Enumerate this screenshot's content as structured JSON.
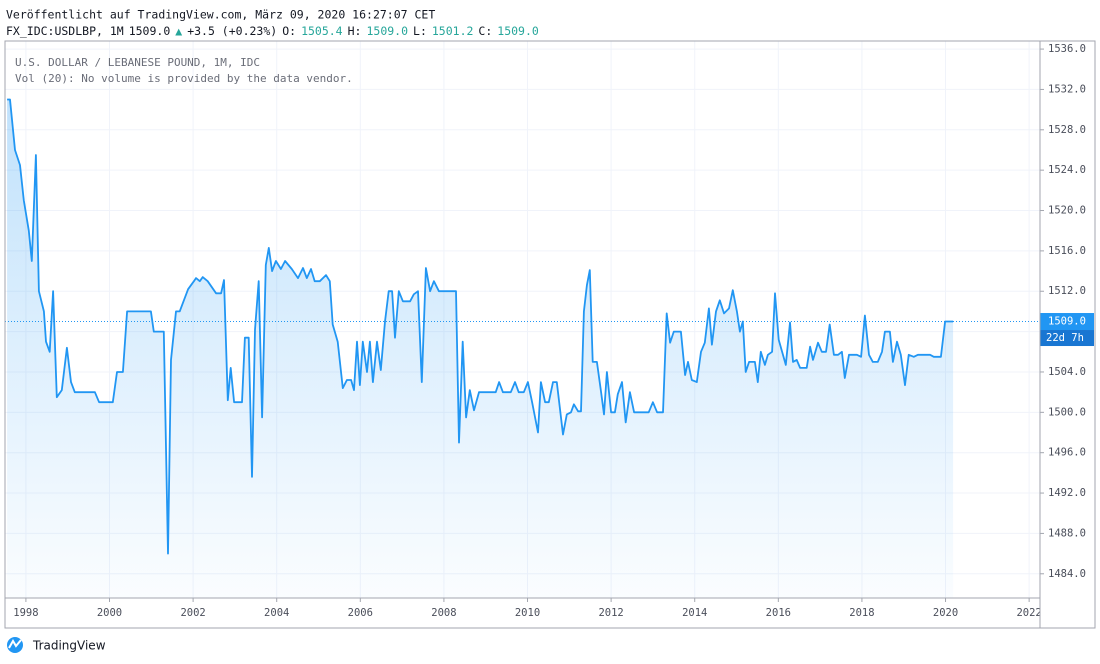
{
  "chart_data": {
    "type": "line",
    "published": "Veröffentlicht auf TradingView.com, März 09, 2020 16:27:07 CET",
    "quote_parts": [
      {
        "text": "FX_IDC:USDLBP, 1M",
        "color": "#131722"
      },
      {
        "text": "1509.0",
        "color": "#131722"
      },
      {
        "text": "▲",
        "color": "#26a69a"
      },
      {
        "text": "+3.5 (+0.23%)",
        "color": "#131722"
      },
      {
        "text": "O:",
        "color": "#131722"
      },
      {
        "text": "1505.4",
        "color": "#26a69a"
      },
      {
        "text": "H:",
        "color": "#131722"
      },
      {
        "text": "1509.0",
        "color": "#26a69a"
      },
      {
        "text": "L:",
        "color": "#131722"
      },
      {
        "text": "1501.2",
        "color": "#26a69a"
      },
      {
        "text": "C:",
        "color": "#131722"
      },
      {
        "text": "1509.0",
        "color": "#26a69a"
      }
    ],
    "legend_lines": [
      "U.S. DOLLAR / LEBANESE POUND, 1M, IDC",
      "Vol (20): No volume is provided by the data vendor."
    ],
    "brand": "TradingView",
    "color": "#2196f3",
    "grid": true,
    "last_price": {
      "value": 1509,
      "label": "1509.0"
    },
    "countdown": "22d 7h",
    "xlim": [
      1997.5,
      2022.26
    ],
    "xticks": [
      1998,
      2000,
      2002,
      2004,
      2006,
      2008,
      2010,
      2012,
      2014,
      2016,
      2018,
      2020,
      2022
    ],
    "ylim": [
      1481.6,
      1536.8
    ],
    "yticks": [
      {
        "value": 1484,
        "label": "1484.0"
      },
      {
        "value": 1488,
        "label": "1488.0"
      },
      {
        "value": 1492,
        "label": "1492.0"
      },
      {
        "value": 1496,
        "label": "1496.0"
      },
      {
        "value": 1500,
        "label": "1500.0"
      },
      {
        "value": 1504,
        "label": "1504.0"
      },
      {
        "value": 1508,
        "label": "1508.0"
      },
      {
        "value": 1512,
        "label": "1512.0"
      },
      {
        "value": 1516,
        "label": "1516.0"
      },
      {
        "value": 1520,
        "label": "1520.0"
      },
      {
        "value": 1524,
        "label": "1524.0"
      },
      {
        "value": 1528,
        "label": "1528.0"
      },
      {
        "value": 1532,
        "label": "1532.0"
      },
      {
        "value": 1536,
        "label": "1536.0"
      }
    ],
    "x": [
      1997.55,
      1997.62,
      1997.74,
      1997.86,
      1997.95,
      1998.07,
      1998.14,
      1998.24,
      1998.31,
      1998.43,
      1998.48,
      1998.57,
      1998.65,
      1998.74,
      1998.86,
      1998.98,
      1999.08,
      1999.17,
      1999.65,
      1999.75,
      2000.08,
      2000.18,
      2000.32,
      2000.42,
      2000.99,
      2001.06,
      2001.3,
      2001.4,
      2001.47,
      2001.59,
      2001.68,
      2001.88,
      2002.02,
      2002.07,
      2002.16,
      2002.23,
      2002.35,
      2002.55,
      2002.67,
      2002.74,
      2002.83,
      2002.9,
      2002.98,
      2003.17,
      2003.24,
      2003.33,
      2003.41,
      2003.48,
      2003.57,
      2003.65,
      2003.74,
      2003.81,
      2003.89,
      2003.98,
      2004.1,
      2004.2,
      2004.36,
      2004.51,
      2004.63,
      2004.72,
      2004.82,
      2004.91,
      2005.03,
      2005.18,
      2005.27,
      2005.34,
      2005.46,
      2005.58,
      2005.68,
      2005.78,
      2005.85,
      2005.92,
      2005.99,
      2006.06,
      2006.16,
      2006.23,
      2006.3,
      2006.4,
      2006.49,
      2006.59,
      2006.68,
      2006.76,
      2006.83,
      2006.92,
      2007.02,
      2007.19,
      2007.28,
      2007.38,
      2007.47,
      2007.57,
      2007.67,
      2007.76,
      2007.88,
      2008.29,
      2008.36,
      2008.45,
      2008.53,
      2008.62,
      2008.72,
      2008.84,
      2009.24,
      2009.32,
      2009.41,
      2009.6,
      2009.7,
      2009.79,
      2009.91,
      2010.01,
      2010.11,
      2010.25,
      2010.32,
      2010.42,
      2010.51,
      2010.61,
      2010.7,
      2010.85,
      2010.94,
      2011.04,
      2011.11,
      2011.21,
      2011.28,
      2011.35,
      2011.42,
      2011.49,
      2011.56,
      2011.66,
      2011.76,
      2011.83,
      2011.9,
      2012.0,
      2012.09,
      2012.16,
      2012.26,
      2012.35,
      2012.45,
      2012.55,
      2012.9,
      2013.0,
      2013.1,
      2013.24,
      2013.33,
      2013.41,
      2013.5,
      2013.67,
      2013.77,
      2013.84,
      2013.93,
      2014.05,
      2014.15,
      2014.24,
      2014.34,
      2014.41,
      2014.51,
      2014.6,
      2014.7,
      2014.82,
      2014.91,
      2015.01,
      2015.08,
      2015.15,
      2015.22,
      2015.3,
      2015.44,
      2015.51,
      2015.58,
      2015.68,
      2015.75,
      2015.85,
      2015.92,
      2016.01,
      2016.09,
      2016.18,
      2016.28,
      2016.35,
      2016.44,
      2016.52,
      2016.68,
      2016.76,
      2016.83,
      2016.95,
      2017.04,
      2017.14,
      2017.23,
      2017.33,
      2017.43,
      2017.52,
      2017.59,
      2017.69,
      2017.88,
      2017.98,
      2018.07,
      2018.17,
      2018.26,
      2018.38,
      2018.48,
      2018.55,
      2018.67,
      2018.74,
      2018.84,
      2018.93,
      2019.03,
      2019.12,
      2019.24,
      2019.34,
      2019.63,
      2019.72,
      2019.89,
      2019.99,
      2020.18
    ],
    "values": [
      1531,
      1531,
      1526,
      1524.5,
      1521,
      1518,
      1515,
      1525.5,
      1512,
      1510,
      1507,
      1506,
      1512,
      1501.5,
      1502.2,
      1506.4,
      1503,
      1502,
      1502,
      1501,
      1501,
      1504,
      1504,
      1510,
      1510,
      1508,
      1508,
      1486,
      1505.2,
      1510,
      1510,
      1512.2,
      1513,
      1513.3,
      1513,
      1513.4,
      1513,
      1511.8,
      1511.8,
      1513.1,
      1501.2,
      1504.4,
      1501,
      1501,
      1507.4,
      1507.4,
      1493.6,
      1508.2,
      1513,
      1499.5,
      1514.6,
      1516.3,
      1514,
      1515,
      1514.2,
      1515,
      1514.2,
      1513.3,
      1514.3,
      1513.3,
      1514.2,
      1513,
      1513,
      1513.6,
      1513,
      1508.7,
      1507,
      1502.4,
      1503.2,
      1503.2,
      1502.2,
      1507,
      1502.7,
      1507,
      1504,
      1507,
      1503,
      1507,
      1504.2,
      1509,
      1512,
      1512,
      1507.4,
      1512,
      1511,
      1511,
      1511.7,
      1512,
      1503,
      1514.3,
      1512,
      1513,
      1512,
      1512,
      1497,
      1507,
      1499.5,
      1502.2,
      1500.2,
      1502,
      1502,
      1503,
      1502,
      1502,
      1503,
      1502,
      1502,
      1503,
      1501,
      1498,
      1503,
      1501,
      1501,
      1503,
      1503,
      1497.8,
      1499.8,
      1500,
      1500.8,
      1500.1,
      1500.1,
      1510,
      1512.6,
      1514.1,
      1505,
      1505,
      1502,
      1499.8,
      1504,
      1500,
      1500,
      1501.8,
      1503,
      1499,
      1502,
      1500,
      1500,
      1501,
      1500,
      1500,
      1509.8,
      1506.9,
      1508,
      1508,
      1503.7,
      1505,
      1503.2,
      1503,
      1506,
      1506.9,
      1510.3,
      1506.7,
      1510,
      1511.1,
      1509.8,
      1510.3,
      1512.1,
      1510,
      1508,
      1509,
      1504,
      1505,
      1505,
      1503,
      1506,
      1504.7,
      1505.7,
      1506,
      1511.8,
      1507.2,
      1506,
      1504.7,
      1508.9,
      1505,
      1505.2,
      1504.4,
      1504.4,
      1506.5,
      1505.2,
      1506.9,
      1506,
      1506,
      1508.7,
      1505.7,
      1505.7,
      1506,
      1503.4,
      1505.7,
      1505.7,
      1505.5,
      1509.6,
      1505.7,
      1505,
      1505,
      1506,
      1508,
      1508,
      1505,
      1507,
      1505.7,
      1502.7,
      1505.7,
      1505.5,
      1505.7,
      1505.7,
      1505.5,
      1505.5,
      1509,
      1509
    ]
  }
}
